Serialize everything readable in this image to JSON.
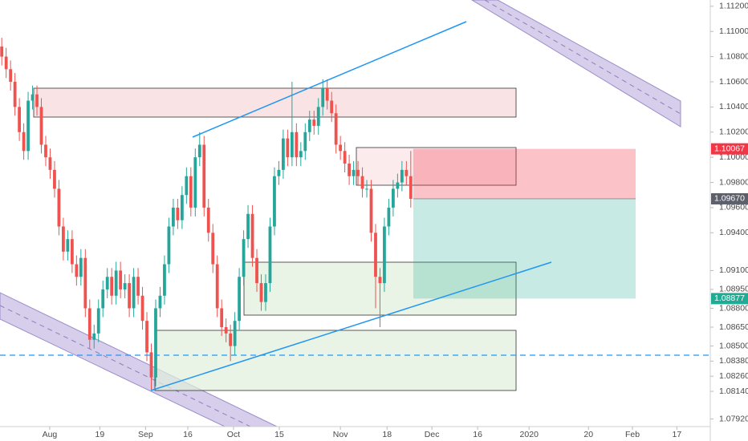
{
  "chart_data": {
    "type": "candlestick",
    "up_color": "#26a69a",
    "down_color": "#ef5350",
    "grid": false,
    "open": [
      1.1088,
      1.108,
      1.107,
      1.106,
      1.104,
      1.102,
      1.1005,
      1.1045,
      1.105,
      1.104,
      1.101,
      1.1,
      1.099,
      1.0975,
      1.0945,
      1.0925,
      1.0935,
      1.0915,
      1.0905,
      1.092,
      1.088,
      1.0855,
      1.086,
      1.088,
      1.0895,
      1.0905,
      1.089,
      1.091,
      1.0895,
      1.09,
      1.088,
      1.0905,
      1.089,
      1.087,
      1.0845,
      1.0825,
      1.088,
      1.089,
      1.0915,
      1.0945,
      1.096,
      1.095,
      1.097,
      1.0985,
      1.096,
      1.1,
      1.101,
      1.096,
      1.094,
      1.0915,
      1.088,
      1.0865,
      1.086,
      1.085,
      1.087,
      1.0905,
      1.0935,
      1.0955,
      1.092,
      1.09,
      1.0885,
      1.09,
      1.0945,
      1.0985,
      1.099,
      1.1015,
      1.1,
      1.102,
      1.1,
      1.1005,
      1.102,
      1.103,
      1.1025,
      1.104,
      1.1055,
      1.1045,
      1.1035,
      1.101,
      1.1005,
      1.0995,
      1.0985,
      1.099,
      1.0985,
      1.0975,
      1.0975,
      1.094,
      1.0905,
      1.09,
      1.0945,
      1.096,
      1.0975,
      1.098,
      1.099,
      1.0985
    ],
    "high": [
      1.1095,
      1.1087,
      1.1077,
      1.1067,
      1.1047,
      1.1027,
      1.1052,
      1.1057,
      1.1057,
      1.1047,
      1.1017,
      1.1007,
      1.0997,
      1.0982,
      1.0952,
      1.0942,
      1.0942,
      1.0922,
      1.0927,
      1.0927,
      1.0887,
      1.0867,
      1.0887,
      1.0902,
      1.0912,
      1.0912,
      1.0917,
      1.0917,
      1.0907,
      1.0907,
      1.0912,
      1.0912,
      1.0897,
      1.0877,
      1.0852,
      1.0887,
      1.0897,
      1.0922,
      1.0952,
      1.0967,
      1.0967,
      1.0977,
      1.0992,
      1.0992,
      1.1007,
      1.102,
      1.1017,
      1.0967,
      1.0947,
      1.0922,
      1.0887,
      1.0872,
      1.0867,
      1.0877,
      1.0912,
      1.0942,
      1.0962,
      1.0962,
      1.0927,
      1.0907,
      1.0907,
      1.0952,
      1.0992,
      1.0997,
      1.1022,
      1.1022,
      1.106,
      1.1027,
      1.1012,
      1.1027,
      1.1037,
      1.1037,
      1.1047,
      1.1062,
      1.1062,
      1.1052,
      1.1042,
      1.1017,
      1.1012,
      1.1002,
      1.0997,
      1.0997,
      1.0992,
      1.0982,
      1.0982,
      1.0947,
      1.0912,
      1.0952,
      1.0967,
      1.0982,
      1.0987,
      1.0997,
      1.0997,
      1.1005
    ],
    "low": [
      1.1073,
      1.1063,
      1.1053,
      1.1033,
      1.1013,
      1.0998,
      1.0998,
      1.1038,
      1.1033,
      1.1003,
      1.0993,
      1.0983,
      1.0968,
      1.0938,
      1.0918,
      1.0918,
      1.0908,
      1.0898,
      1.0898,
      1.0873,
      1.0848,
      1.0848,
      1.0853,
      1.0873,
      1.0888,
      1.0883,
      1.0883,
      1.0888,
      1.0888,
      1.0873,
      1.0873,
      1.0883,
      1.0863,
      1.0838,
      1.0815,
      1.0818,
      1.0873,
      1.0883,
      1.0908,
      1.0938,
      1.0943,
      1.0943,
      1.0963,
      1.0953,
      1.0953,
      1.0993,
      1.0953,
      1.0933,
      1.0908,
      1.0873,
      1.0858,
      1.0853,
      1.0838,
      1.0843,
      1.0863,
      1.0898,
      1.0928,
      1.0913,
      1.0893,
      1.0878,
      1.0878,
      1.0893,
      1.0938,
      1.0978,
      1.0983,
      1.0993,
      1.0993,
      1.0993,
      1.0993,
      1.0998,
      1.1013,
      1.1018,
      1.1018,
      1.1033,
      1.1038,
      1.1028,
      1.1003,
      1.0998,
      1.0988,
      1.0978,
      1.0978,
      1.0978,
      1.0968,
      1.0968,
      1.0933,
      1.088,
      1.0865,
      1.0893,
      1.0938,
      1.0953,
      1.0968,
      1.0973,
      1.0978,
      1.096
    ],
    "close": [
      1.108,
      1.107,
      1.106,
      1.104,
      1.102,
      1.1005,
      1.1045,
      1.105,
      1.104,
      1.101,
      1.1,
      1.099,
      1.0975,
      1.0945,
      1.0925,
      1.0935,
      1.0915,
      1.0905,
      1.092,
      1.088,
      1.0855,
      1.086,
      1.088,
      1.0895,
      1.0905,
      1.089,
      1.091,
      1.0895,
      1.09,
      1.088,
      1.0905,
      1.089,
      1.087,
      1.0845,
      1.0825,
      1.088,
      1.089,
      1.0915,
      1.0945,
      1.096,
      1.095,
      1.097,
      1.0985,
      1.096,
      1.1,
      1.101,
      1.096,
      1.094,
      1.0915,
      1.088,
      1.0865,
      1.086,
      1.085,
      1.087,
      1.0905,
      1.0935,
      1.0955,
      1.092,
      1.09,
      1.0885,
      1.09,
      1.0945,
      1.0985,
      1.099,
      1.1015,
      1.1,
      1.102,
      1.1,
      1.1005,
      1.102,
      1.103,
      1.1025,
      1.104,
      1.1055,
      1.1045,
      1.1035,
      1.101,
      1.1005,
      1.0995,
      1.0985,
      1.099,
      1.0985,
      1.0975,
      1.0975,
      1.094,
      1.0905,
      1.09,
      1.0945,
      1.096,
      1.0975,
      1.098,
      1.099,
      1.0985,
      1.0967
    ],
    "xlim": [
      -0.4,
      161.1
    ],
    "xticks": [
      {
        "value": 10.9,
        "label": "Aug"
      },
      {
        "value": 22.3,
        "label": "19"
      },
      {
        "value": 32.7,
        "label": "Sep"
      },
      {
        "value": 42.3,
        "label": "16"
      },
      {
        "value": 52.7,
        "label": "Oct"
      },
      {
        "value": 63.1,
        "label": "15"
      },
      {
        "value": 77,
        "label": "Nov"
      },
      {
        "value": 87.6,
        "label": "18"
      },
      {
        "value": 97.8,
        "label": "Dec"
      },
      {
        "value": 108.2,
        "label": "16"
      },
      {
        "value": 119.9,
        "label": "2020"
      },
      {
        "value": 133.4,
        "label": "20"
      },
      {
        "value": 143.4,
        "label": "Feb"
      },
      {
        "value": 153.5,
        "label": "17"
      }
    ],
    "ylim": [
      1.0786,
      1.1125
    ],
    "yticks": [
      {
        "value": 1.112,
        "label": "1.11200"
      },
      {
        "value": 1.11,
        "label": "1.11000"
      },
      {
        "value": 1.108,
        "label": "1.10800"
      },
      {
        "value": 1.106,
        "label": "1.10600"
      },
      {
        "value": 1.104,
        "label": "1.10400"
      },
      {
        "value": 1.102,
        "label": "1.10200"
      },
      {
        "value": 1.1,
        "label": "1.10000"
      },
      {
        "value": 1.098,
        "label": "1.09800"
      },
      {
        "value": 1.096,
        "label": "1.09600"
      },
      {
        "value": 1.094,
        "label": "1.09400"
      },
      {
        "value": 1.091,
        "label": "1.09100"
      },
      {
        "value": 1.0895,
        "label": "1.08950"
      },
      {
        "value": 1.088,
        "label": "1.08800"
      },
      {
        "value": 1.0865,
        "label": "1.08650"
      },
      {
        "value": 1.085,
        "label": "1.08500"
      },
      {
        "value": 1.0838,
        "label": "1.08380"
      },
      {
        "value": 1.0826,
        "label": "1.08260"
      },
      {
        "value": 1.0814,
        "label": "1.08140"
      },
      {
        "value": 1.0792,
        "label": "1.07920"
      }
    ],
    "position": {
      "stop": {
        "value": 1.10067,
        "label": "1.10067",
        "color": "#f23645"
      },
      "entry": {
        "value": 1.0967,
        "label": "1.09670",
        "color": "#5d606b"
      },
      "target": {
        "value": 1.08877,
        "label": "1.08877",
        "color": "#22ab94"
      }
    }
  }
}
